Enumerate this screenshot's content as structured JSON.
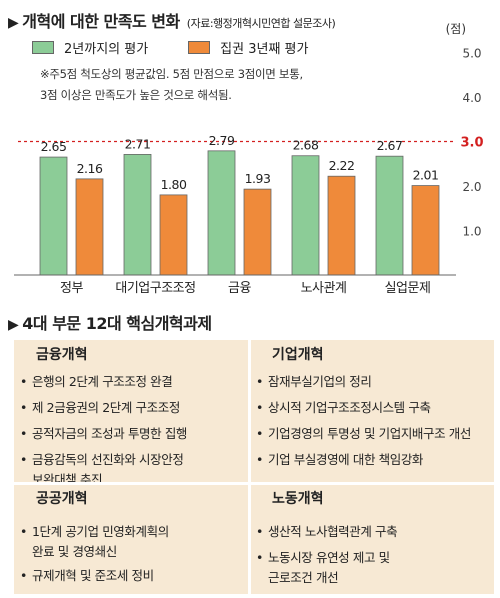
{
  "header": {
    "arrow": "▶",
    "title": "개혁에 대한 만족도 변화",
    "source": "(자료:행정개혁시민연합 설문조사)"
  },
  "unit": "(점)",
  "legend": {
    "green": "2년까지의 평가",
    "orange": "집권 3년째 평가"
  },
  "note": {
    "line1": "※주5점 척도상의 평균값임. 5점 만점으로 3점이면 보통,",
    "line2": "3점 이상은 만족도가 높은 것으로 해석됨."
  },
  "colors": {
    "green": "#8ccc97",
    "orange": "#ef8a3a",
    "red": "#d32020",
    "panel": "#f7e9d4"
  },
  "chart_data": {
    "type": "bar",
    "categories": [
      "정부",
      "대기업구조조정",
      "금융",
      "노사관계",
      "실업문제"
    ],
    "series": [
      {
        "name": "2년까지의 평가",
        "values": [
          2.65,
          2.71,
          2.79,
          2.68,
          2.67
        ],
        "labels": [
          "2.65",
          "2.71",
          "2.79",
          "2.68",
          "2.67"
        ]
      },
      {
        "name": "집권 3년째 평가",
        "values": [
          2.16,
          1.8,
          1.93,
          2.22,
          2.01
        ],
        "labels": [
          "2.16",
          "1.80",
          "1.93",
          "2.22",
          "2.01"
        ]
      }
    ],
    "yticks": [
      {
        "value": 5.0,
        "label": "5.0"
      },
      {
        "value": 4.0,
        "label": "4.0"
      },
      {
        "value": 3.0,
        "label": "3.0",
        "highlight": true
      },
      {
        "value": 2.0,
        "label": "2.0"
      },
      {
        "value": 1.0,
        "label": "1.0"
      }
    ],
    "ylim": [
      0,
      5
    ],
    "reference_line": 3.0
  },
  "section2": {
    "arrow": "▶",
    "title": "4대 부문 12대 핵심개혁과제"
  },
  "panels": {
    "finance": {
      "title": "금융개혁",
      "items": [
        "은행의 2단계 구조조정 완결",
        "제 2금융권의 2단계 구조조정",
        "공적자금의 조성과 투명한 집행",
        "금융감독의 선진화와 시장안정\n보완대책 추진"
      ]
    },
    "corporate": {
      "title": "기업개혁",
      "items": [
        "잠재부실기업의 정리",
        "상시적 기업구조조정시스템 구축",
        "기업경영의 투명성 및 기업지배구조 개선",
        "기업 부실경영에 대한 책임강화"
      ]
    },
    "public": {
      "title": "공공개혁",
      "items": [
        "1단계 공기업 민영화계획의\n완료 및 경영쇄신",
        "규제개혁 및 준조세 정비"
      ]
    },
    "labor": {
      "title": "노동개혁",
      "items": [
        "생산적 노사협력관계 구축",
        "노동시장 유연성 제고 및\n근로조건 개선"
      ]
    }
  },
  "bullet": "•"
}
